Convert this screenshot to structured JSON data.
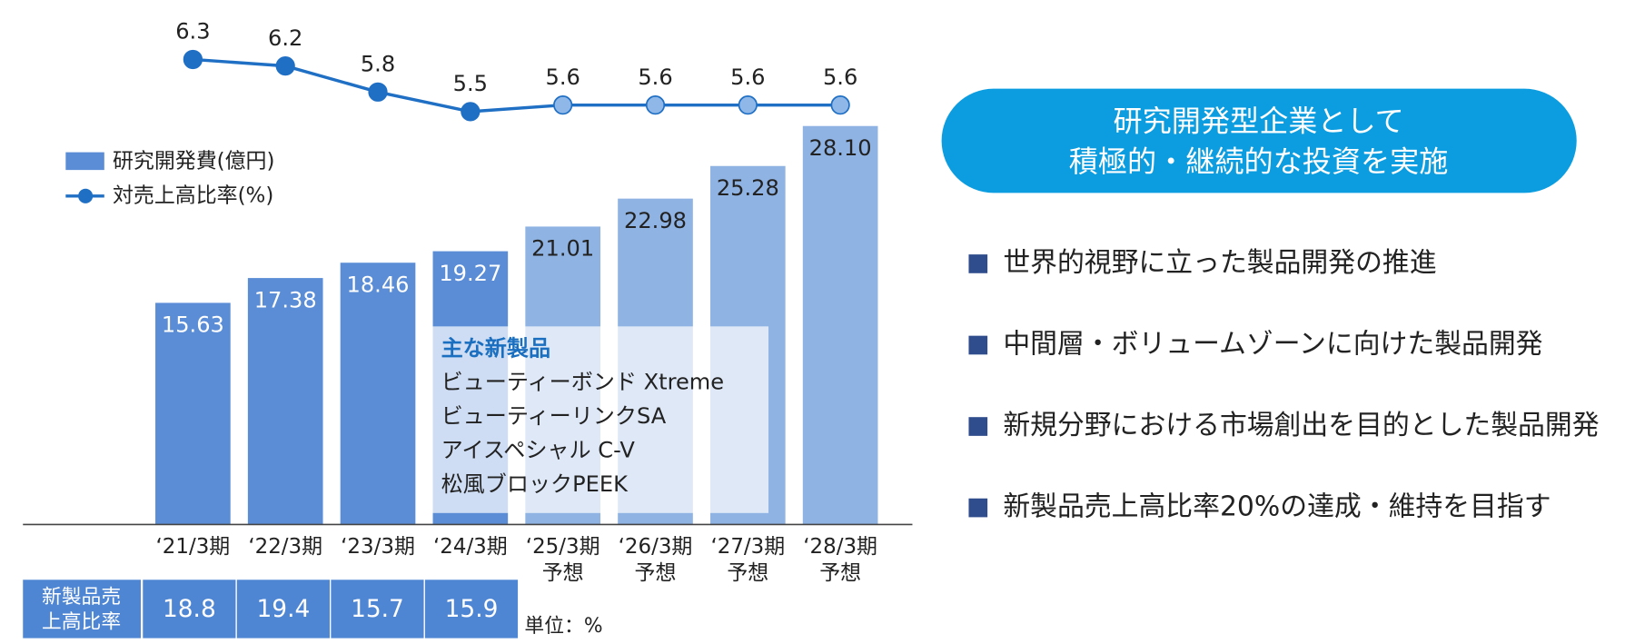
{
  "chart_data": {
    "type": "bar",
    "categories": [
      [
        "‘21/3期"
      ],
      [
        "‘22/3期"
      ],
      [
        "‘23/3期"
      ],
      [
        "‘24/3期"
      ],
      [
        "‘25/3期",
        "予想"
      ],
      [
        "‘26/3期",
        "予想"
      ],
      [
        "‘27/3期",
        "予想"
      ],
      [
        "‘28/3期",
        "予想"
      ]
    ],
    "series": [
      {
        "name": "研究開発費(億円)",
        "type": "bar",
        "colors": [
          "#5a8dd6",
          "#5a8dd6",
          "#5a8dd6",
          "#5a8dd6",
          "#8fb3e3",
          "#8fb3e3",
          "#8fb3e3",
          "#8fb3e3"
        ],
        "values": [
          15.63,
          17.38,
          18.46,
          19.27,
          21.01,
          22.98,
          25.28,
          28.1
        ],
        "value_labels": [
          "15.63",
          "17.38",
          "18.46",
          "19.27",
          "21.01",
          "22.98",
          "25.28",
          "28.10"
        ]
      },
      {
        "name": "対売上高比率(%)",
        "type": "line",
        "color": "#1f6fc5",
        "marker_colors": [
          "#1f6fc5",
          "#1f6fc5",
          "#1f6fc5",
          "#1f6fc5",
          "#8fb8e8",
          "#8fb8e8",
          "#8fb8e8",
          "#8fb8e8"
        ],
        "values": [
          6.3,
          6.2,
          5.8,
          5.5,
          5.6,
          5.6,
          5.6,
          5.6
        ]
      }
    ],
    "table": {
      "label": [
        "新製品売",
        "上高比率"
      ],
      "values": [
        18.8,
        19.4,
        15.7,
        15.9
      ],
      "unit": "単位：%"
    },
    "new_products": {
      "title": "主な新製品",
      "items": [
        "ビューティーボンド Xtreme",
        "ビューティーリンクSA",
        "アイスペシャル C-V",
        "松風ブロックPEEK"
      ]
    }
  },
  "panel": {
    "headline": [
      "研究開発型企業として",
      "積極的・継続的な投資を実施"
    ],
    "points": [
      "世界的視野に立った製品開発の推進",
      "中間層・ボリュームゾーンに向けた製品開発",
      "新規分野における市場創出を目的とした製品開発",
      "新製品売上高比率20%の達成・維持を目指す"
    ]
  }
}
